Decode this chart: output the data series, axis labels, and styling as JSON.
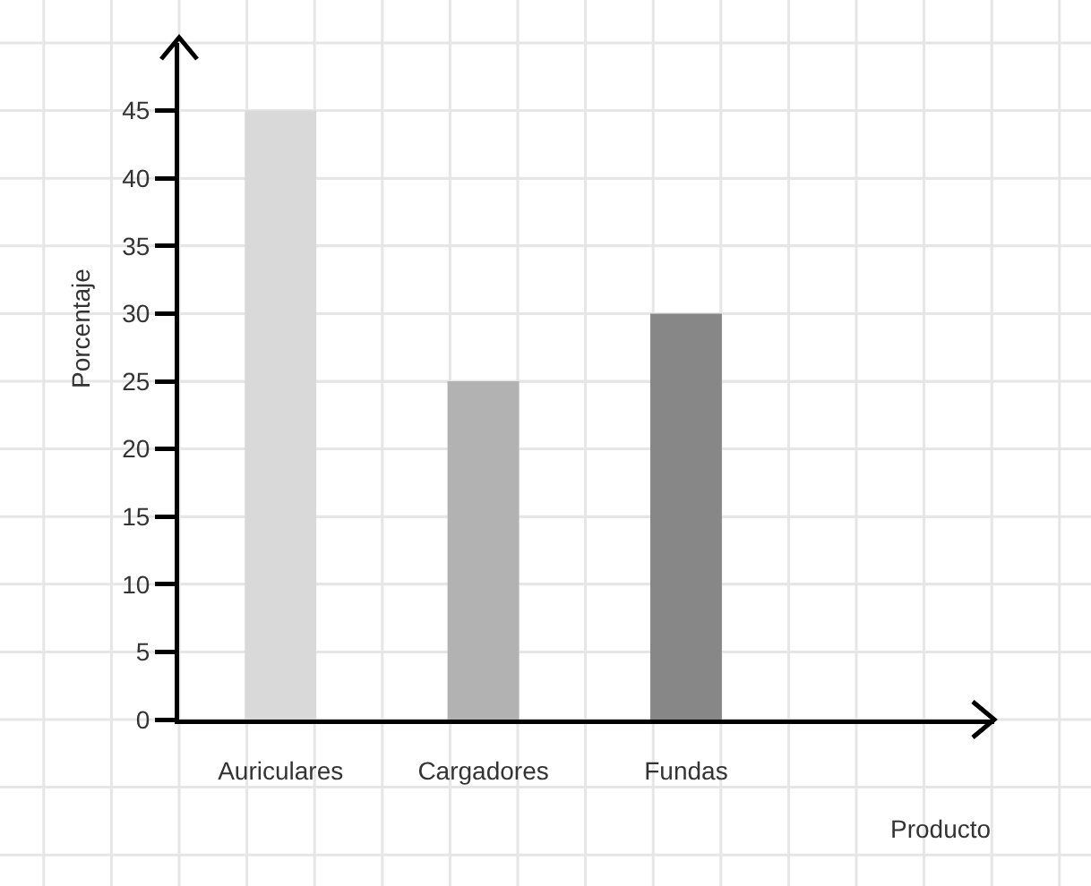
{
  "chart_data": {
    "type": "bar",
    "xlabel": "Producto",
    "ylabel": "Porcentaje",
    "categories": [
      "Auriculares",
      "Cargadores",
      "Fundas"
    ],
    "values": [
      45,
      25,
      30
    ],
    "colors": [
      "#d9d9d9",
      "#b2b2b2",
      "#878787"
    ],
    "ylim": [
      0,
      50
    ],
    "yticks": [
      0,
      5,
      10,
      15,
      20,
      25,
      30,
      35,
      40,
      45
    ],
    "grid": true
  }
}
